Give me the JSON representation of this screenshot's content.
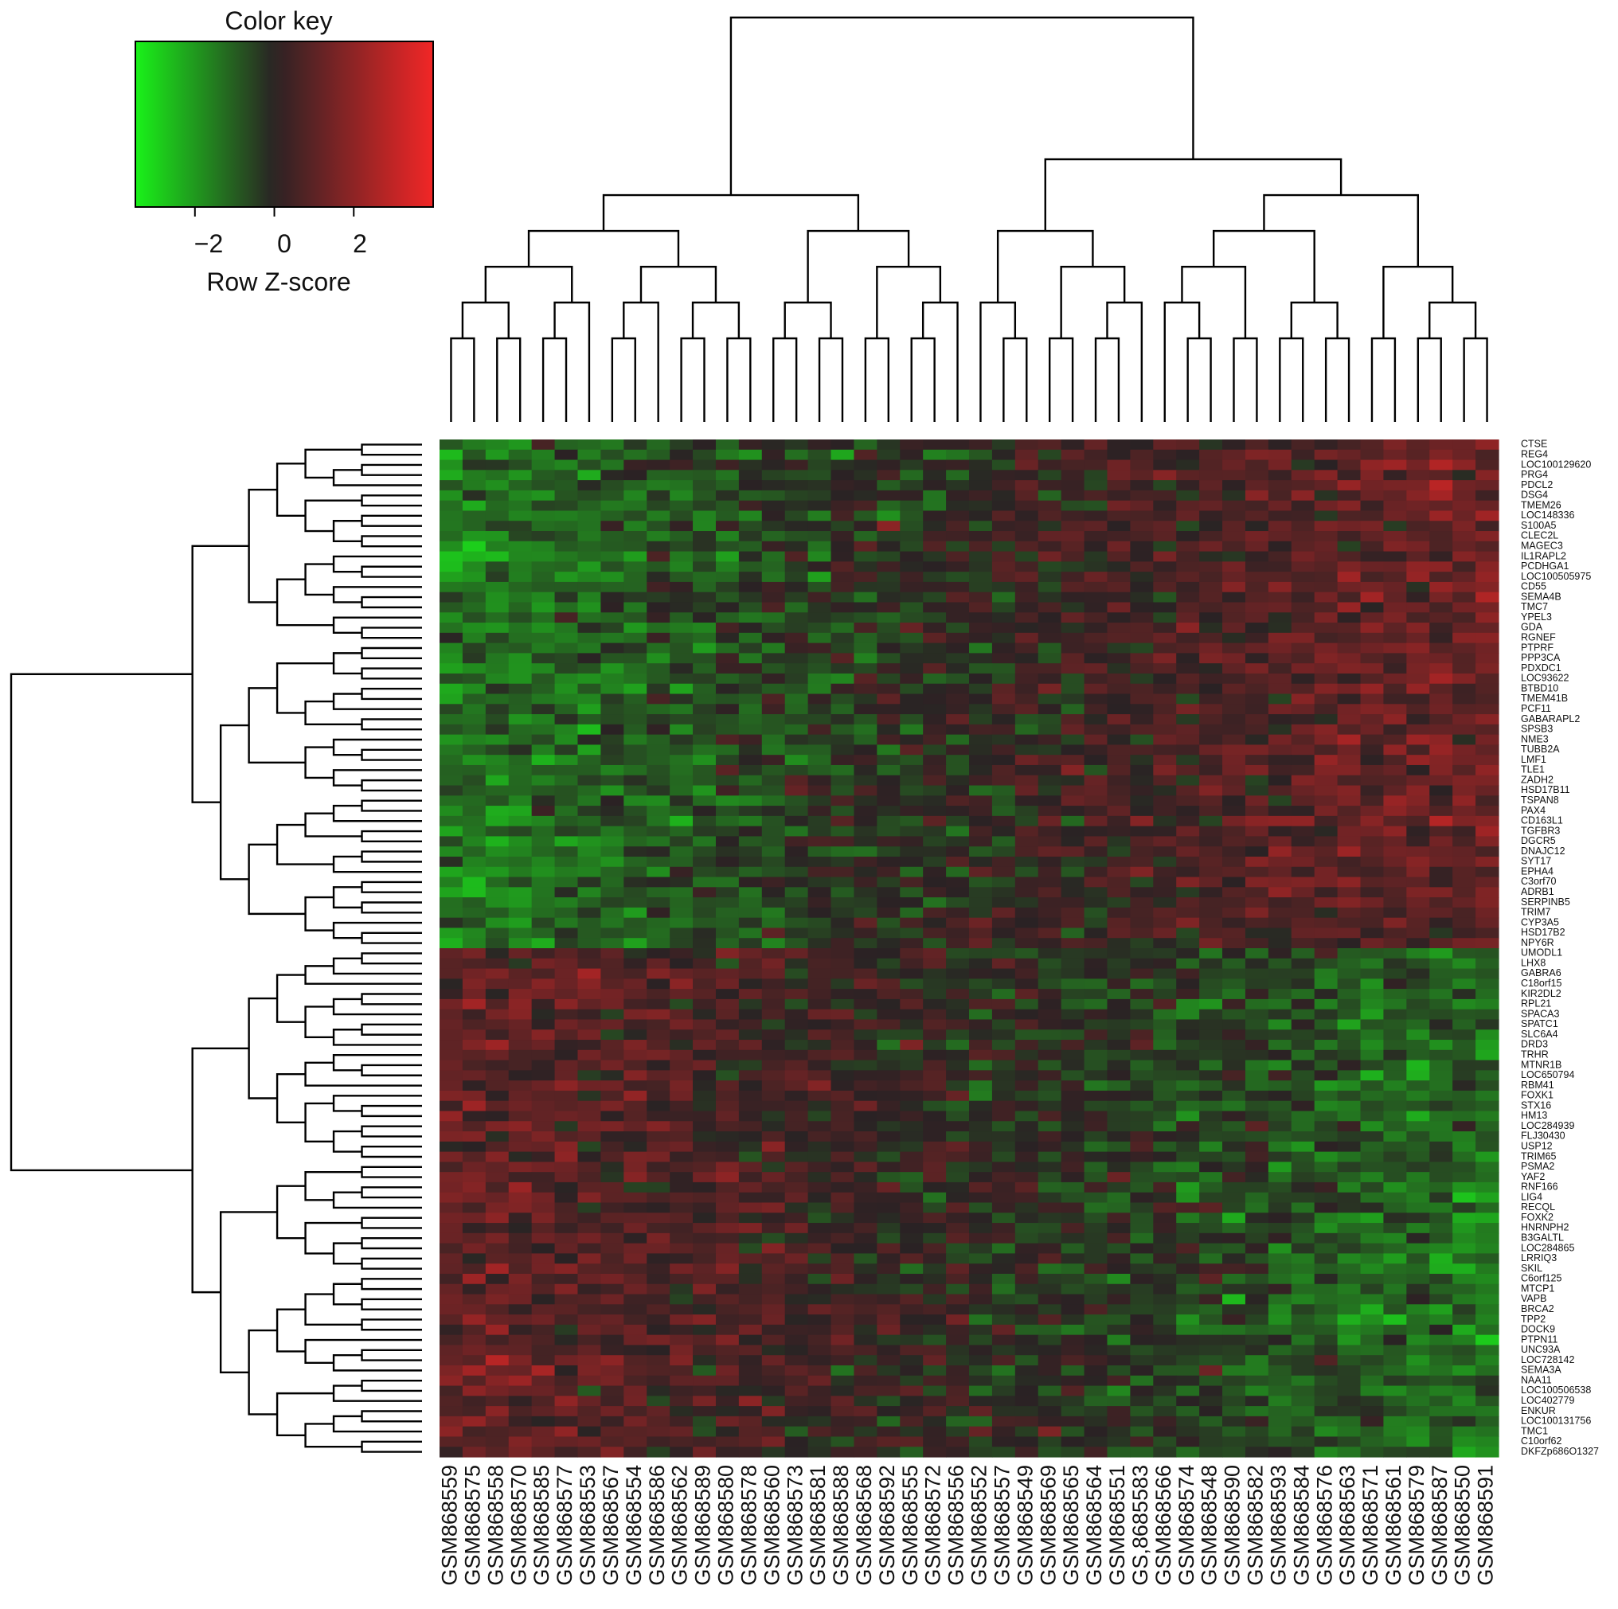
{
  "chart_data": {
    "type": "heatmap",
    "color_key": {
      "title": "Color key",
      "xlabel": "Row Z-score",
      "ticks": [
        "−2",
        "0",
        "2"
      ],
      "tick_values": [
        -2,
        0,
        2
      ],
      "range": [
        -3.5,
        4
      ],
      "low_color": "#19f219",
      "mid_color": "#2a2224",
      "high_color": "#f22626"
    },
    "columns": [
      "GSM868559",
      "GSM868575",
      "GSM868558",
      "GSM868570",
      "GSM868585",
      "GSM868577",
      "GSM868553",
      "GSM868567",
      "GSM868554",
      "GSM868586",
      "GSM868562",
      "GSM868589",
      "GSM868580",
      "GSM868578",
      "GSM868560",
      "GSM868573",
      "GSM868581",
      "GSM868588",
      "GSM868568",
      "GSM868592",
      "GSM868555",
      "GSM868572",
      "GSM868556",
      "GSM868552",
      "GSM868557",
      "GSM868549",
      "GSM868569",
      "GSM868565",
      "GSM868564",
      "GSM868551",
      "GS,8685583",
      "GSM868566",
      "GSM868574",
      "GSM868548",
      "GSM868590",
      "GSM868582",
      "GSM868593",
      "GSM868584",
      "GSM868576",
      "GSM868563",
      "GSM868571",
      "GSM868561",
      "GSM868579",
      "GSM868587",
      "GSM868550",
      "GSM868591"
    ],
    "rows": [
      "CTSE",
      "REG4",
      "LOC100129620",
      "PRG4",
      "PDCL2",
      "DSG4",
      "TMEM26",
      "LOC148336",
      "S100A5",
      "CLEC2L",
      "MAGEC3",
      "IL1RAPL2",
      "PCDHGA1",
      "LOC100505975",
      "CD55",
      "SEMA4B",
      "TMC7",
      "YPEL3",
      "GDA",
      "RGNEF",
      "PTPRF",
      "PPP3CA",
      "PDXDC1",
      "LOC93622",
      "BTBD10",
      "TMEM41B",
      "PCF11",
      "GABARAPL2",
      "SPSB3",
      "NME3",
      "TUBB2A",
      "LMF1",
      "TLE1",
      "ZADH2",
      "HSD17B11",
      "TSPAN8",
      "PAX4",
      "CD163L1",
      "TGFBR3",
      "DGCR5",
      "DNAJC12",
      "SYT17",
      "EPHA4",
      "C3orf70",
      "ADRB1",
      "SERPINB5",
      "TRIM7",
      "CYP3A5",
      "HSD17B2",
      "NPY6R",
      "UMODL1",
      "LHX8",
      "GABRA6",
      "C18orf15",
      "KIR2DL2",
      "RPL21",
      "SPACA3",
      "SPATC1",
      "SLC6A4",
      "DRD3",
      "TRHR",
      "MTNR1B",
      "LOC650794",
      "RBM41",
      "FOXK1",
      "STX16",
      "HM13",
      "LOC284939",
      "FLJ30430",
      "USP12",
      "TRIM65",
      "PSMA2",
      "YAF2",
      "RNF166",
      "LIG4",
      "RECQL",
      "FOXK2",
      "HNRNPH2",
      "B3GALTL",
      "LOC284865",
      "LRRIQ3",
      "SKIL",
      "C6orf125",
      "MTCP1",
      "VAPB",
      "BRCA2",
      "TPP2",
      "DOCK9",
      "PTPN11",
      "UNC93A",
      "LOC728142",
      "SEMA3A",
      "NAA11",
      "LOC100506538",
      "LOC402779",
      "ENKUR",
      "LOC100131756",
      "TMC1",
      "C10orf62",
      "DKFZp686O1327"
    ],
    "row_groups": [
      {
        "rows": "CTSE – NPY6R",
        "left_columns": "low (green)",
        "right_columns": "high (red)"
      },
      {
        "rows": "UMODL1 – DKFZp686O1327",
        "left_columns": "high (red)",
        "right_columns": "low (green)"
      }
    ],
    "column_dendrogram": "46 samples split into two main clusters (GSM868559…GSM868556 and GSM868552…GSM868591)",
    "row_dendrogram": "100 genes split into two main clusters (CTSE…NPY6R and UMODL1…DKFZp686O1327)",
    "grid": false
  }
}
